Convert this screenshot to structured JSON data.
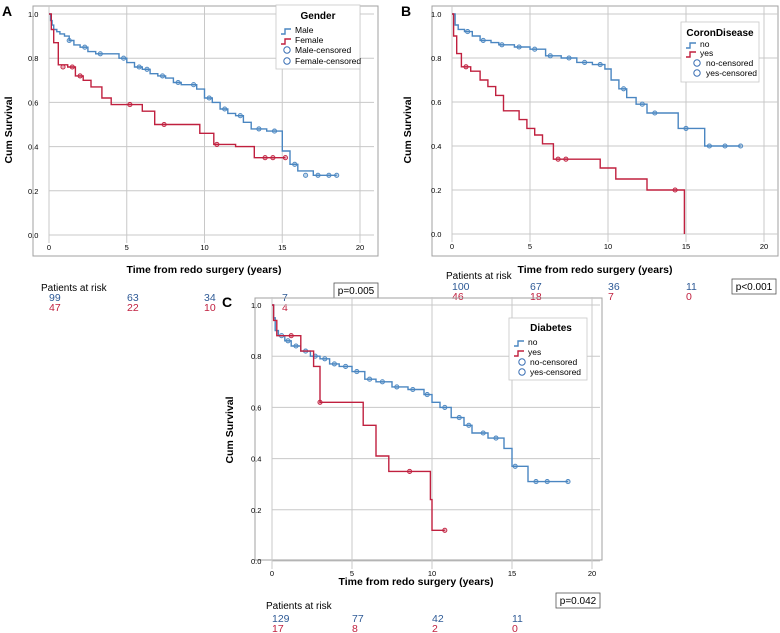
{
  "colors": {
    "blue": "#4a86c1",
    "red": "#c0203f",
    "grid": "#c8c8c8",
    "frame": "#a0a0a0",
    "risk_blue": "#2e5a96",
    "risk_red": "#c0203f"
  },
  "risk_label": "Patients at risk",
  "x_axis_label": "Time from redo surgery (years)",
  "y_axis_label": "Cum Survival",
  "chart_data": [
    {
      "panel": "A",
      "type": "line",
      "xlabel": "Time from redo surgery (years)",
      "ylabel": "Cum Survival",
      "xlim": [
        0,
        20
      ],
      "ylim": [
        0,
        1
      ],
      "xticks": [
        "0",
        "5",
        "10",
        "15",
        "20"
      ],
      "yticks": [
        "0.0",
        "0.2",
        "0.4",
        "0.6",
        "0.8",
        "1.0"
      ],
      "legend_title": "Gender",
      "legend": [
        "Male",
        "Female",
        "Male-censored",
        "Female-censored"
      ],
      "series": [
        {
          "name": "Male",
          "color": "blue",
          "x": [
            0,
            0.1,
            0.2,
            0.3,
            0.5,
            0.7,
            1.0,
            1.3,
            1.6,
            2.0,
            2.5,
            3.0,
            3.5,
            4.5,
            5.0,
            5.5,
            6.0,
            6.5,
            7.0,
            7.5,
            8.0,
            8.5,
            9.0,
            9.5,
            10.0,
            10.5,
            11.0,
            11.5,
            12.0,
            12.5,
            13.0,
            14.0,
            15.0,
            15.5,
            16.0,
            17.0,
            18.5
          ],
          "y": [
            1.0,
            0.97,
            0.95,
            0.93,
            0.92,
            0.91,
            0.9,
            0.88,
            0.86,
            0.85,
            0.83,
            0.82,
            0.82,
            0.8,
            0.78,
            0.76,
            0.75,
            0.73,
            0.72,
            0.71,
            0.69,
            0.68,
            0.68,
            0.66,
            0.62,
            0.6,
            0.57,
            0.55,
            0.54,
            0.51,
            0.48,
            0.47,
            0.38,
            0.32,
            0.29,
            0.27,
            0.27
          ],
          "censored": [
            [
              1.3,
              0.88
            ],
            [
              2.3,
              0.85
            ],
            [
              3.3,
              0.82
            ],
            [
              4.8,
              0.8
            ],
            [
              5.8,
              0.76
            ],
            [
              6.3,
              0.75
            ],
            [
              7.3,
              0.72
            ],
            [
              8.3,
              0.69
            ],
            [
              9.3,
              0.68
            ],
            [
              10.3,
              0.62
            ],
            [
              11.3,
              0.57
            ],
            [
              12.3,
              0.54
            ],
            [
              13.5,
              0.48
            ],
            [
              14.5,
              0.47
            ],
            [
              15.8,
              0.32
            ],
            [
              16.5,
              0.27
            ],
            [
              17.3,
              0.27
            ],
            [
              18.0,
              0.27
            ],
            [
              18.5,
              0.27
            ]
          ]
        },
        {
          "name": "Female",
          "color": "red",
          "x": [
            0,
            0.15,
            0.3,
            0.6,
            1.2,
            1.7,
            2.2,
            2.7,
            3.4,
            4.0,
            5.0,
            6.0,
            6.8,
            8.0,
            9.7,
            10.6,
            12.0,
            13.2,
            15.0,
            15.2
          ],
          "y": [
            1.0,
            0.93,
            0.87,
            0.77,
            0.76,
            0.72,
            0.7,
            0.67,
            0.62,
            0.59,
            0.59,
            0.56,
            0.5,
            0.5,
            0.46,
            0.41,
            0.4,
            0.35,
            0.35,
            0.35
          ],
          "censored": [
            [
              0.9,
              0.76
            ],
            [
              1.5,
              0.76
            ],
            [
              2.0,
              0.72
            ],
            [
              5.2,
              0.59
            ],
            [
              7.4,
              0.5
            ],
            [
              10.8,
              0.41
            ],
            [
              13.9,
              0.35
            ],
            [
              14.4,
              0.35
            ],
            [
              15.2,
              0.35
            ]
          ]
        }
      ],
      "at_risk_times": [
        "0",
        "5",
        "10",
        "15"
      ],
      "at_risk": {
        "blue": [
          "99",
          "63",
          "34",
          "7"
        ],
        "red": [
          "47",
          "22",
          "10",
          "4"
        ]
      },
      "p_value": "p=0.005"
    },
    {
      "panel": "B",
      "type": "line",
      "xlabel": "Time from redo surgery (years)",
      "ylabel": "Cum Survival",
      "xlim": [
        0,
        20
      ],
      "ylim": [
        0,
        1
      ],
      "xticks": [
        "0",
        "5",
        "10",
        "15",
        "20"
      ],
      "yticks": [
        "0.0",
        "0.2",
        "0.4",
        "0.6",
        "0.8",
        "1.0"
      ],
      "legend_title": "CoronDisease",
      "legend": [
        "no",
        "yes",
        "no-censored",
        "yes-censored"
      ],
      "series": [
        {
          "name": "no",
          "color": "blue",
          "x": [
            0,
            0.2,
            0.4,
            0.8,
            1.3,
            1.8,
            2.5,
            3.0,
            3.5,
            4.0,
            5.0,
            6.0,
            7.0,
            8.0,
            9.0,
            9.8,
            10.2,
            10.7,
            11.2,
            11.8,
            12.5,
            13.5,
            14.5,
            15.5,
            16.2,
            18.5
          ],
          "y": [
            1.0,
            0.95,
            0.93,
            0.92,
            0.9,
            0.88,
            0.87,
            0.86,
            0.86,
            0.85,
            0.84,
            0.81,
            0.8,
            0.78,
            0.77,
            0.75,
            0.7,
            0.66,
            0.62,
            0.59,
            0.55,
            0.55,
            0.48,
            0.48,
            0.4,
            0.4
          ],
          "censored": [
            [
              1.0,
              0.92
            ],
            [
              2.0,
              0.88
            ],
            [
              3.2,
              0.86
            ],
            [
              4.3,
              0.85
            ],
            [
              5.3,
              0.84
            ],
            [
              6.3,
              0.81
            ],
            [
              7.5,
              0.8
            ],
            [
              8.5,
              0.78
            ],
            [
              9.5,
              0.77
            ],
            [
              11.0,
              0.66
            ],
            [
              12.2,
              0.59
            ],
            [
              13.0,
              0.55
            ],
            [
              15.0,
              0.48
            ],
            [
              16.5,
              0.4
            ],
            [
              17.5,
              0.4
            ],
            [
              18.5,
              0.4
            ]
          ]
        },
        {
          "name": "yes",
          "color": "red",
          "x": [
            0,
            0.1,
            0.3,
            0.6,
            1.2,
            1.8,
            2.3,
            2.8,
            3.3,
            4.3,
            4.8,
            5.3,
            5.8,
            6.5,
            8.0,
            9.5,
            10.5,
            12.5,
            14.5,
            14.9
          ],
          "y": [
            1.0,
            0.9,
            0.82,
            0.76,
            0.74,
            0.7,
            0.67,
            0.63,
            0.56,
            0.52,
            0.48,
            0.45,
            0.41,
            0.34,
            0.34,
            0.3,
            0.25,
            0.2,
            0.2,
            0.0
          ],
          "censored": [
            [
              0.9,
              0.76
            ],
            [
              6.8,
              0.34
            ],
            [
              7.3,
              0.34
            ],
            [
              14.3,
              0.2
            ]
          ]
        }
      ],
      "at_risk_times": [
        "0",
        "5",
        "10",
        "15"
      ],
      "at_risk": {
        "blue": [
          "100",
          "67",
          "36",
          "11"
        ],
        "red": [
          "46",
          "18",
          "7",
          "0"
        ]
      },
      "p_value": "p<0.001"
    },
    {
      "panel": "C",
      "type": "line",
      "xlabel": "Time from redo surgery (years)",
      "ylabel": "Cum Survival",
      "xlim": [
        0,
        20
      ],
      "ylim": [
        0,
        1
      ],
      "xticks": [
        "0",
        "5",
        "10",
        "15",
        "20"
      ],
      "yticks": [
        "0.0",
        "0.2",
        "0.4",
        "0.6",
        "0.8",
        "1.0"
      ],
      "legend_title": "Diabetes",
      "legend": [
        "no",
        "yes",
        "no-censored",
        "yes-censored"
      ],
      "series": [
        {
          "name": "no",
          "color": "blue",
          "x": [
            0,
            0.1,
            0.2,
            0.4,
            0.8,
            1.2,
            1.8,
            2.4,
            3.0,
            3.6,
            4.2,
            5.0,
            5.8,
            6.5,
            7.5,
            8.5,
            9.5,
            10.0,
            10.5,
            11.2,
            12.0,
            12.5,
            13.5,
            14.5,
            15.0,
            16.0,
            18.5
          ],
          "y": [
            1.0,
            0.95,
            0.9,
            0.88,
            0.86,
            0.84,
            0.82,
            0.8,
            0.79,
            0.77,
            0.76,
            0.74,
            0.71,
            0.7,
            0.68,
            0.67,
            0.65,
            0.62,
            0.6,
            0.56,
            0.53,
            0.5,
            0.48,
            0.44,
            0.37,
            0.31,
            0.31
          ],
          "censored": [
            [
              0.6,
              0.88
            ],
            [
              1.0,
              0.86
            ],
            [
              1.5,
              0.84
            ],
            [
              2.1,
              0.82
            ],
            [
              2.7,
              0.8
            ],
            [
              3.3,
              0.79
            ],
            [
              3.9,
              0.77
            ],
            [
              4.6,
              0.76
            ],
            [
              5.3,
              0.74
            ],
            [
              6.1,
              0.71
            ],
            [
              6.9,
              0.7
            ],
            [
              7.8,
              0.68
            ],
            [
              8.8,
              0.67
            ],
            [
              9.7,
              0.65
            ],
            [
              10.8,
              0.6
            ],
            [
              11.7,
              0.56
            ],
            [
              12.3,
              0.53
            ],
            [
              13.2,
              0.5
            ],
            [
              14.0,
              0.48
            ],
            [
              15.2,
              0.37
            ],
            [
              16.5,
              0.31
            ],
            [
              17.2,
              0.31
            ],
            [
              18.5,
              0.31
            ]
          ]
        },
        {
          "name": "yes",
          "color": "red",
          "x": [
            0,
            0.1,
            0.3,
            1.8,
            2.6,
            3.0,
            5.7,
            6.5,
            7.3,
            8.0,
            9.9,
            10.0,
            10.8
          ],
          "y": [
            1.0,
            0.94,
            0.88,
            0.82,
            0.76,
            0.62,
            0.53,
            0.41,
            0.35,
            0.35,
            0.24,
            0.12,
            0.12
          ],
          "censored": [
            [
              1.2,
              0.88
            ],
            [
              3.0,
              0.62
            ],
            [
              8.6,
              0.35
            ],
            [
              10.8,
              0.12
            ]
          ]
        }
      ],
      "at_risk_times": [
        "0",
        "5",
        "10",
        "15"
      ],
      "at_risk": {
        "blue": [
          "129",
          "77",
          "42",
          "11"
        ],
        "red": [
          "17",
          "8",
          "2",
          "0"
        ]
      },
      "p_value": "p=0.042"
    }
  ]
}
